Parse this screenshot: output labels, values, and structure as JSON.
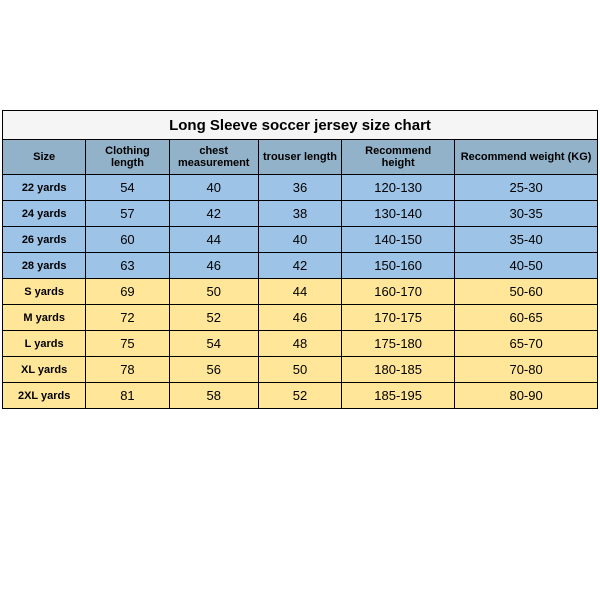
{
  "title": "Long Sleeve soccer jersey size chart",
  "columns": [
    {
      "key": "size",
      "label": "Size"
    },
    {
      "key": "cloth",
      "label": "Clothing length"
    },
    {
      "key": "chest",
      "label": "chest measurement"
    },
    {
      "key": "trous",
      "label": "trouser length"
    },
    {
      "key": "rech",
      "label": "Recommend height"
    },
    {
      "key": "recw",
      "label": "Recommend weight (KG)"
    }
  ],
  "column_widths_pct": [
    14,
    14,
    15,
    14,
    19,
    24
  ],
  "header_row_color": "#91b2c8",
  "row_groups": [
    {
      "color": "#9dc3e6",
      "rows": [
        {
          "size": "22 yards",
          "cloth": "54",
          "chest": "40",
          "trous": "36",
          "rech": "120-130",
          "recw": "25-30"
        },
        {
          "size": "24 yards",
          "cloth": "57",
          "chest": "42",
          "trous": "38",
          "rech": "130-140",
          "recw": "30-35"
        },
        {
          "size": "26 yards",
          "cloth": "60",
          "chest": "44",
          "trous": "40",
          "rech": "140-150",
          "recw": "35-40"
        },
        {
          "size": "28 yards",
          "cloth": "63",
          "chest": "46",
          "trous": "42",
          "rech": "150-160",
          "recw": "40-50"
        }
      ]
    },
    {
      "color": "#ffe699",
      "rows": [
        {
          "size": "S yards",
          "cloth": "69",
          "chest": "50",
          "trous": "44",
          "rech": "160-170",
          "recw": "50-60"
        },
        {
          "size": "M yards",
          "cloth": "72",
          "chest": "52",
          "trous": "46",
          "rech": "170-175",
          "recw": "60-65"
        },
        {
          "size": "L yards",
          "cloth": "75",
          "chest": "54",
          "trous": "48",
          "rech": "175-180",
          "recw": "65-70"
        },
        {
          "size": "XL yards",
          "cloth": "78",
          "chest": "56",
          "trous": "50",
          "rech": "180-185",
          "recw": "70-80"
        },
        {
          "size": "2XL yards",
          "cloth": "81",
          "chest": "58",
          "trous": "52",
          "rech": "185-195",
          "recw": "80-90"
        }
      ]
    }
  ],
  "title_background": "#f5f5f5",
  "border_color": "#000000",
  "page_background": "#ffffff",
  "font_sizes": {
    "title": 15,
    "header": 11,
    "chest_header": 9,
    "size_cell": 11,
    "value_cell": 13
  }
}
